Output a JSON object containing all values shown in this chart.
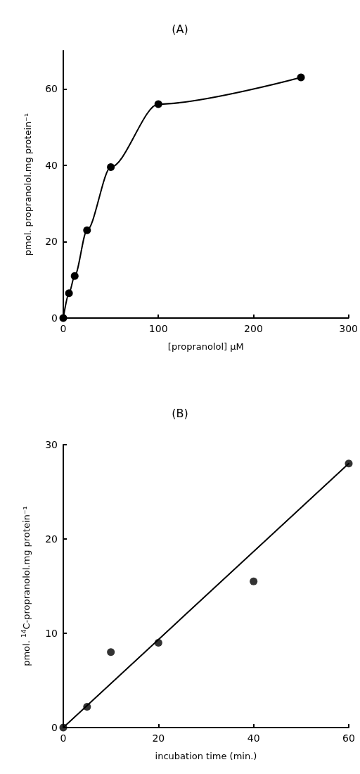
{
  "chart_data": [
    {
      "type": "line",
      "title": "(A)",
      "xlabel": "[propranolol] μM",
      "ylabel": "pmol. propranolol.mg protein⁻¹",
      "x": [
        0,
        6,
        12,
        25,
        50,
        100,
        250
      ],
      "series": [
        {
          "color": "#000000",
          "values": [
            0,
            6.5,
            11,
            23,
            39.5,
            56,
            63
          ]
        }
      ],
      "xlim": [
        0,
        300
      ],
      "xticks": [
        0,
        100,
        200,
        300
      ],
      "ylim": [
        0,
        70
      ],
      "yticks": [
        0,
        20,
        40,
        60
      ],
      "grid": false,
      "marker": "circle",
      "line_style": "solid"
    },
    {
      "type": "scatter",
      "title": "(B)",
      "xlabel": "incubation time (min.)",
      "ylabel": "pmol. $^{14}$C-propranolol.mg protein⁻¹",
      "x": [
        0,
        5,
        10,
        20,
        40,
        60
      ],
      "series": [
        {
          "color": "#000000",
          "values": [
            0,
            2.2,
            8,
            9,
            15.5,
            28
          ]
        },
        {
          "type": "line",
          "color": "#000000",
          "x": [
            0,
            60
          ],
          "values": [
            0,
            28
          ],
          "marker": "none"
        }
      ],
      "xlim": [
        0,
        60
      ],
      "xticks": [
        0,
        20,
        40,
        60
      ],
      "ylim": [
        0,
        30
      ],
      "yticks": [
        0,
        10,
        20,
        30
      ],
      "grid": false,
      "marker": "circle"
    }
  ]
}
